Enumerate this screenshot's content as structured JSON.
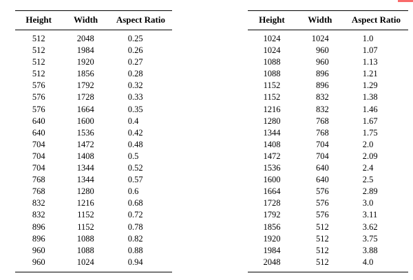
{
  "page": {
    "background_color": "#ffffff",
    "text_color": "#000000"
  },
  "red_marker": {
    "color": "#f96a6a"
  },
  "tables": [
    {
      "headers": [
        "Height",
        "Width",
        "Aspect Ratio"
      ],
      "rows": [
        [
          "512",
          "2048",
          "0.25"
        ],
        [
          "512",
          "1984",
          "0.26"
        ],
        [
          "512",
          "1920",
          "0.27"
        ],
        [
          "512",
          "1856",
          "0.28"
        ],
        [
          "576",
          "1792",
          "0.32"
        ],
        [
          "576",
          "1728",
          "0.33"
        ],
        [
          "576",
          "1664",
          "0.35"
        ],
        [
          "640",
          "1600",
          "0.4"
        ],
        [
          "640",
          "1536",
          "0.42"
        ],
        [
          "704",
          "1472",
          "0.48"
        ],
        [
          "704",
          "1408",
          "0.5"
        ],
        [
          "704",
          "1344",
          "0.52"
        ],
        [
          "768",
          "1344",
          "0.57"
        ],
        [
          "768",
          "1280",
          "0.6"
        ],
        [
          "832",
          "1216",
          "0.68"
        ],
        [
          "832",
          "1152",
          "0.72"
        ],
        [
          "896",
          "1152",
          "0.78"
        ],
        [
          "896",
          "1088",
          "0.82"
        ],
        [
          "960",
          "1088",
          "0.88"
        ],
        [
          "960",
          "1024",
          "0.94"
        ]
      ]
    },
    {
      "headers": [
        "Height",
        "Width",
        "Aspect Ratio"
      ],
      "rows": [
        [
          "1024",
          "1024",
          "1.0"
        ],
        [
          "1024",
          "960",
          "1.07"
        ],
        [
          "1088",
          "960",
          "1.13"
        ],
        [
          "1088",
          "896",
          "1.21"
        ],
        [
          "1152",
          "896",
          "1.29"
        ],
        [
          "1152",
          "832",
          "1.38"
        ],
        [
          "1216",
          "832",
          "1.46"
        ],
        [
          "1280",
          "768",
          "1.67"
        ],
        [
          "1344",
          "768",
          "1.75"
        ],
        [
          "1408",
          "704",
          "2.0"
        ],
        [
          "1472",
          "704",
          "2.09"
        ],
        [
          "1536",
          "640",
          "2.4"
        ],
        [
          "1600",
          "640",
          "2.5"
        ],
        [
          "1664",
          "576",
          "2.89"
        ],
        [
          "1728",
          "576",
          "3.0"
        ],
        [
          "1792",
          "576",
          "3.11"
        ],
        [
          "1856",
          "512",
          "3.62"
        ],
        [
          "1920",
          "512",
          "3.75"
        ],
        [
          "1984",
          "512",
          "3.88"
        ],
        [
          "2048",
          "512",
          "4.0"
        ]
      ]
    }
  ]
}
